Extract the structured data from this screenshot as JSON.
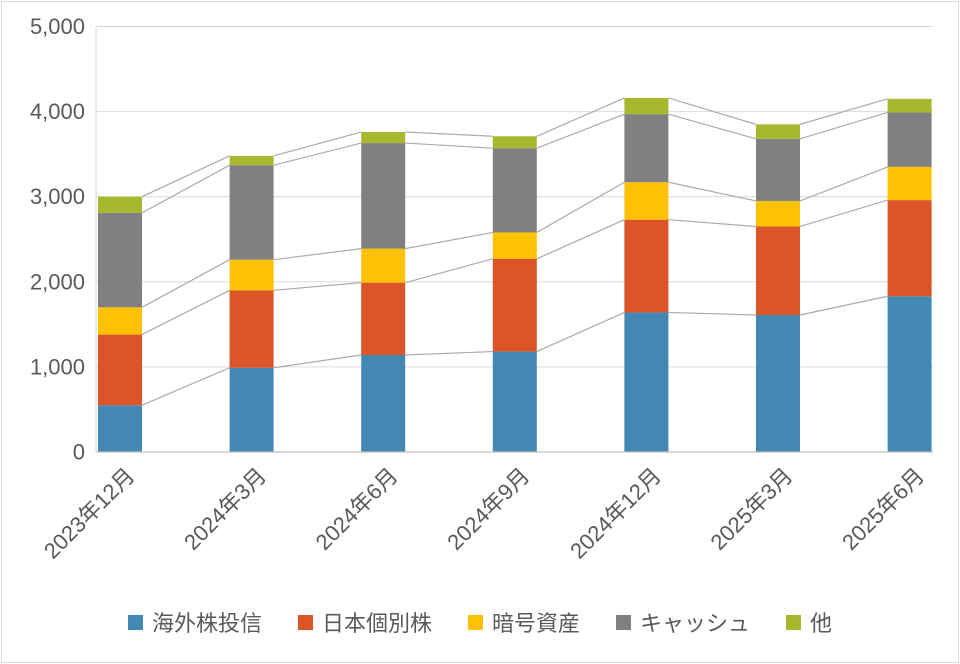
{
  "chart_data": {
    "type": "bar",
    "stacked": true,
    "title": "",
    "xlabel": "",
    "ylabel": "",
    "categories": [
      "2023年12月",
      "2024年3月",
      "2024年6月",
      "2024年9月",
      "2024年12月",
      "2025年3月",
      "2025年6月"
    ],
    "series": [
      {
        "name": "海外株投信",
        "color": "#4288B2",
        "values": [
          550,
          990,
          1140,
          1180,
          1640,
          1610,
          1830
        ]
      },
      {
        "name": "日本個別株",
        "color": "#DC5427",
        "values": [
          830,
          910,
          850,
          1090,
          1090,
          1040,
          1130
        ]
      },
      {
        "name": "暗号資産",
        "color": "#FFC103",
        "values": [
          320,
          360,
          400,
          310,
          440,
          300,
          390
        ]
      },
      {
        "name": "キャッシュ",
        "color": "#808080",
        "values": [
          1110,
          1110,
          1240,
          990,
          800,
          730,
          640
        ]
      },
      {
        "name": "他",
        "color": "#A8B82E",
        "values": [
          190,
          110,
          130,
          140,
          190,
          170,
          160
        ]
      }
    ],
    "totals": [
      3000,
      3480,
      3760,
      3710,
      4160,
      3850,
      4150
    ],
    "ylim": [
      0,
      5000
    ],
    "ytick_interval": 1000,
    "ytick_labels": [
      "0",
      "1,000",
      "2,000",
      "3,000",
      "4,000",
      "5,000"
    ],
    "grid": true,
    "series_lines": true,
    "legend_position": "bottom",
    "xtick_rotation_deg": -45
  },
  "style": {
    "gridline_color": "#D9D9D9",
    "axis_line_color": "#BFBFBF",
    "plot_border_color": "#D9D9D9",
    "series_line_color": "#ABABAB",
    "tick_label_color": "#595959",
    "legend_text_color": "#595959",
    "chart_frame_color": "#D9D9D9",
    "background_color": "#FFFFFF"
  }
}
